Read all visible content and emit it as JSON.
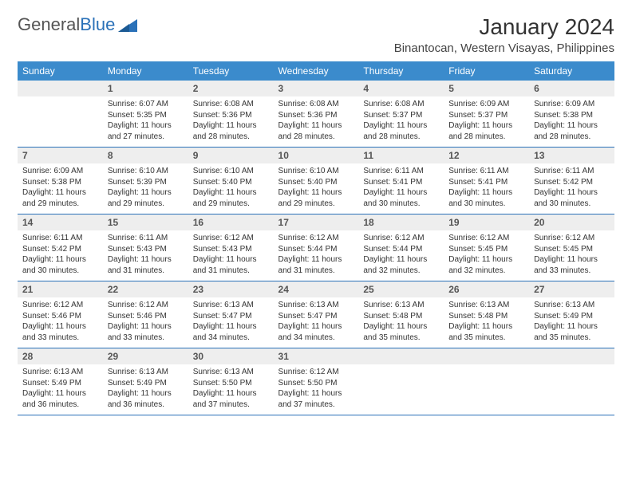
{
  "logo": {
    "text1": "General",
    "text2": "Blue"
  },
  "header": {
    "month_title": "January 2024",
    "location": "Binantocan, Western Visayas, Philippines"
  },
  "colors": {
    "header_bg": "#3b8bcc",
    "header_fg": "#ffffff",
    "daynum_bg": "#eeeeee",
    "row_border": "#2a71b8",
    "text": "#333333"
  },
  "weekdays": [
    "Sunday",
    "Monday",
    "Tuesday",
    "Wednesday",
    "Thursday",
    "Friday",
    "Saturday"
  ],
  "weeks": [
    {
      "nums": [
        "",
        "1",
        "2",
        "3",
        "4",
        "5",
        "6"
      ],
      "cells": [
        {
          "sr": "",
          "ss": "",
          "dl1": "",
          "dl2": ""
        },
        {
          "sr": "Sunrise: 6:07 AM",
          "ss": "Sunset: 5:35 PM",
          "dl1": "Daylight: 11 hours",
          "dl2": "and 27 minutes."
        },
        {
          "sr": "Sunrise: 6:08 AM",
          "ss": "Sunset: 5:36 PM",
          "dl1": "Daylight: 11 hours",
          "dl2": "and 28 minutes."
        },
        {
          "sr": "Sunrise: 6:08 AM",
          "ss": "Sunset: 5:36 PM",
          "dl1": "Daylight: 11 hours",
          "dl2": "and 28 minutes."
        },
        {
          "sr": "Sunrise: 6:08 AM",
          "ss": "Sunset: 5:37 PM",
          "dl1": "Daylight: 11 hours",
          "dl2": "and 28 minutes."
        },
        {
          "sr": "Sunrise: 6:09 AM",
          "ss": "Sunset: 5:37 PM",
          "dl1": "Daylight: 11 hours",
          "dl2": "and 28 minutes."
        },
        {
          "sr": "Sunrise: 6:09 AM",
          "ss": "Sunset: 5:38 PM",
          "dl1": "Daylight: 11 hours",
          "dl2": "and 28 minutes."
        }
      ]
    },
    {
      "nums": [
        "7",
        "8",
        "9",
        "10",
        "11",
        "12",
        "13"
      ],
      "cells": [
        {
          "sr": "Sunrise: 6:09 AM",
          "ss": "Sunset: 5:38 PM",
          "dl1": "Daylight: 11 hours",
          "dl2": "and 29 minutes."
        },
        {
          "sr": "Sunrise: 6:10 AM",
          "ss": "Sunset: 5:39 PM",
          "dl1": "Daylight: 11 hours",
          "dl2": "and 29 minutes."
        },
        {
          "sr": "Sunrise: 6:10 AM",
          "ss": "Sunset: 5:40 PM",
          "dl1": "Daylight: 11 hours",
          "dl2": "and 29 minutes."
        },
        {
          "sr": "Sunrise: 6:10 AM",
          "ss": "Sunset: 5:40 PM",
          "dl1": "Daylight: 11 hours",
          "dl2": "and 29 minutes."
        },
        {
          "sr": "Sunrise: 6:11 AM",
          "ss": "Sunset: 5:41 PM",
          "dl1": "Daylight: 11 hours",
          "dl2": "and 30 minutes."
        },
        {
          "sr": "Sunrise: 6:11 AM",
          "ss": "Sunset: 5:41 PM",
          "dl1": "Daylight: 11 hours",
          "dl2": "and 30 minutes."
        },
        {
          "sr": "Sunrise: 6:11 AM",
          "ss": "Sunset: 5:42 PM",
          "dl1": "Daylight: 11 hours",
          "dl2": "and 30 minutes."
        }
      ]
    },
    {
      "nums": [
        "14",
        "15",
        "16",
        "17",
        "18",
        "19",
        "20"
      ],
      "cells": [
        {
          "sr": "Sunrise: 6:11 AM",
          "ss": "Sunset: 5:42 PM",
          "dl1": "Daylight: 11 hours",
          "dl2": "and 30 minutes."
        },
        {
          "sr": "Sunrise: 6:11 AM",
          "ss": "Sunset: 5:43 PM",
          "dl1": "Daylight: 11 hours",
          "dl2": "and 31 minutes."
        },
        {
          "sr": "Sunrise: 6:12 AM",
          "ss": "Sunset: 5:43 PM",
          "dl1": "Daylight: 11 hours",
          "dl2": "and 31 minutes."
        },
        {
          "sr": "Sunrise: 6:12 AM",
          "ss": "Sunset: 5:44 PM",
          "dl1": "Daylight: 11 hours",
          "dl2": "and 31 minutes."
        },
        {
          "sr": "Sunrise: 6:12 AM",
          "ss": "Sunset: 5:44 PM",
          "dl1": "Daylight: 11 hours",
          "dl2": "and 32 minutes."
        },
        {
          "sr": "Sunrise: 6:12 AM",
          "ss": "Sunset: 5:45 PM",
          "dl1": "Daylight: 11 hours",
          "dl2": "and 32 minutes."
        },
        {
          "sr": "Sunrise: 6:12 AM",
          "ss": "Sunset: 5:45 PM",
          "dl1": "Daylight: 11 hours",
          "dl2": "and 33 minutes."
        }
      ]
    },
    {
      "nums": [
        "21",
        "22",
        "23",
        "24",
        "25",
        "26",
        "27"
      ],
      "cells": [
        {
          "sr": "Sunrise: 6:12 AM",
          "ss": "Sunset: 5:46 PM",
          "dl1": "Daylight: 11 hours",
          "dl2": "and 33 minutes."
        },
        {
          "sr": "Sunrise: 6:12 AM",
          "ss": "Sunset: 5:46 PM",
          "dl1": "Daylight: 11 hours",
          "dl2": "and 33 minutes."
        },
        {
          "sr": "Sunrise: 6:13 AM",
          "ss": "Sunset: 5:47 PM",
          "dl1": "Daylight: 11 hours",
          "dl2": "and 34 minutes."
        },
        {
          "sr": "Sunrise: 6:13 AM",
          "ss": "Sunset: 5:47 PM",
          "dl1": "Daylight: 11 hours",
          "dl2": "and 34 minutes."
        },
        {
          "sr": "Sunrise: 6:13 AM",
          "ss": "Sunset: 5:48 PM",
          "dl1": "Daylight: 11 hours",
          "dl2": "and 35 minutes."
        },
        {
          "sr": "Sunrise: 6:13 AM",
          "ss": "Sunset: 5:48 PM",
          "dl1": "Daylight: 11 hours",
          "dl2": "and 35 minutes."
        },
        {
          "sr": "Sunrise: 6:13 AM",
          "ss": "Sunset: 5:49 PM",
          "dl1": "Daylight: 11 hours",
          "dl2": "and 35 minutes."
        }
      ]
    },
    {
      "nums": [
        "28",
        "29",
        "30",
        "31",
        "",
        "",
        ""
      ],
      "cells": [
        {
          "sr": "Sunrise: 6:13 AM",
          "ss": "Sunset: 5:49 PM",
          "dl1": "Daylight: 11 hours",
          "dl2": "and 36 minutes."
        },
        {
          "sr": "Sunrise: 6:13 AM",
          "ss": "Sunset: 5:49 PM",
          "dl1": "Daylight: 11 hours",
          "dl2": "and 36 minutes."
        },
        {
          "sr": "Sunrise: 6:13 AM",
          "ss": "Sunset: 5:50 PM",
          "dl1": "Daylight: 11 hours",
          "dl2": "and 37 minutes."
        },
        {
          "sr": "Sunrise: 6:12 AM",
          "ss": "Sunset: 5:50 PM",
          "dl1": "Daylight: 11 hours",
          "dl2": "and 37 minutes."
        },
        {
          "sr": "",
          "ss": "",
          "dl1": "",
          "dl2": ""
        },
        {
          "sr": "",
          "ss": "",
          "dl1": "",
          "dl2": ""
        },
        {
          "sr": "",
          "ss": "",
          "dl1": "",
          "dl2": ""
        }
      ]
    }
  ]
}
